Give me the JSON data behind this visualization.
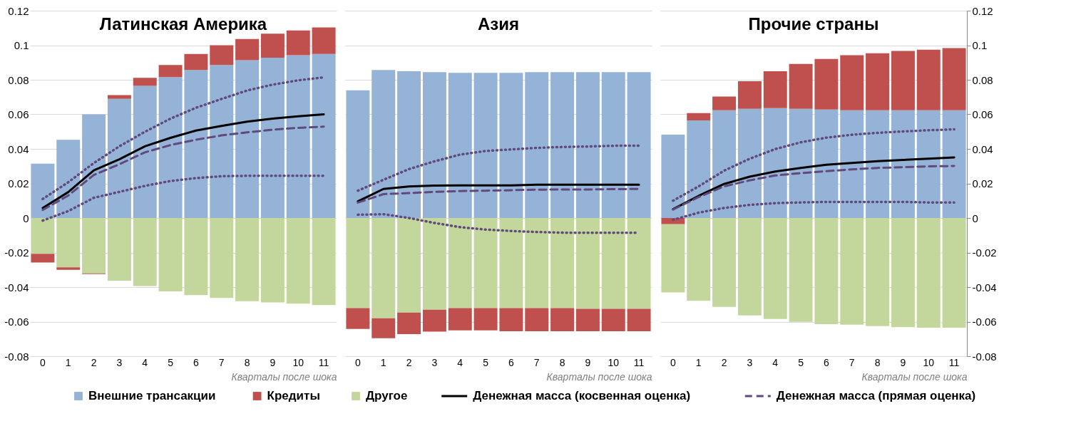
{
  "chart_data": [
    {
      "type": "bar",
      "title": "Латинская Америка",
      "xlabel": "Кварталы после шока",
      "categories": [
        "0",
        "1",
        "2",
        "3",
        "4",
        "5",
        "6",
        "7",
        "8",
        "9",
        "10",
        "11"
      ],
      "stacked": true,
      "ylim": [
        -0.08,
        0.12
      ],
      "yticks": [
        -0.08,
        -0.06,
        -0.04,
        -0.02,
        0,
        0.02,
        0.04,
        0.06,
        0.08,
        0.1,
        0.12
      ],
      "grid": "y",
      "legend": "bottom",
      "series": [
        {
          "name": "Внешние трансакции",
          "type": "bar",
          "color": "#95b3d7",
          "values": [
            0.0314,
            0.0453,
            0.06,
            0.069,
            0.0765,
            0.0815,
            0.0857,
            0.0886,
            0.0913,
            0.0928,
            0.0942,
            0.095
          ]
        },
        {
          "name": "Другое",
          "type": "bar",
          "color": "#c3d69b",
          "values": [
            -0.0207,
            -0.0286,
            -0.0321,
            -0.0363,
            -0.0394,
            -0.0425,
            -0.0446,
            -0.0463,
            -0.0481,
            -0.0489,
            -0.0496,
            -0.0504
          ]
        },
        {
          "name": "Кредиты",
          "type": "bar",
          "color": "#c0504d",
          "values": [
            -0.0051,
            -0.0014,
            -0.0004,
            0.0021,
            0.0046,
            0.0071,
            0.0093,
            0.0114,
            0.0123,
            0.0139,
            0.0144,
            0.0153
          ]
        },
        {
          "name": "Денежная масса (косвенная оценка)",
          "type": "line",
          "line_style": "solid",
          "color": "#000000",
          "values": [
            0.0058,
            0.015,
            0.0276,
            0.034,
            0.0415,
            0.0464,
            0.0506,
            0.0533,
            0.0558,
            0.0575,
            0.0589,
            0.06
          ]
        },
        {
          "name": "Денежная масса (прямая оценка)",
          "type": "line",
          "line_style": "dashed",
          "color": "#604a7b",
          "values": [
            0.0047,
            0.013,
            0.0249,
            0.0311,
            0.038,
            0.0422,
            0.0453,
            0.0478,
            0.0496,
            0.0511,
            0.0522,
            0.0529
          ]
        },
        {
          "type": "line",
          "line_style": "dotted",
          "color": "#604a7b",
          "values": [
            0.011,
            0.0207,
            0.0318,
            0.0415,
            0.0499,
            0.0575,
            0.0638,
            0.0689,
            0.0738,
            0.0772,
            0.0797,
            0.0814
          ]
        },
        {
          "type": "line",
          "line_style": "dotted",
          "color": "#604a7b",
          "values": [
            -0.0015,
            0.004,
            0.0117,
            0.0151,
            0.0186,
            0.0214,
            0.0231,
            0.0242,
            0.0244,
            0.0244,
            0.0244,
            0.0244
          ]
        }
      ]
    },
    {
      "type": "bar",
      "title": "Азия",
      "xlabel": "Кварталы после шока",
      "categories": [
        "0",
        "1",
        "2",
        "3",
        "4",
        "5",
        "6",
        "7",
        "8",
        "9",
        "10",
        "11"
      ],
      "stacked": true,
      "ylim": [
        -0.08,
        0.12
      ],
      "yticks": [
        -0.08,
        -0.06,
        -0.04,
        -0.02,
        0,
        0.02,
        0.04,
        0.06,
        0.08,
        0.1,
        0.12
      ],
      "grid": "y",
      "legend": "bottom",
      "tick_labels": "x",
      "series": [
        {
          "name": "Внешние трансакции",
          "type": "bar",
          "color": "#95b3d7",
          "values": [
            0.0739,
            0.0857,
            0.0849,
            0.0844,
            0.084,
            0.084,
            0.084,
            0.0844,
            0.0844,
            0.0844,
            0.0844,
            0.0844
          ]
        },
        {
          "name": "Другое",
          "type": "bar",
          "color": "#c3d69b",
          "values": [
            -0.0522,
            -0.058,
            -0.0547,
            -0.0531,
            -0.0522,
            -0.0522,
            -0.0522,
            -0.0522,
            -0.0522,
            -0.0526,
            -0.0526,
            -0.0526
          ]
        },
        {
          "name": "Кредиты",
          "type": "bar",
          "color": "#c0504d",
          "values": [
            -0.012,
            -0.0116,
            -0.0125,
            -0.0127,
            -0.0128,
            -0.0128,
            -0.0134,
            -0.0134,
            -0.0134,
            -0.013,
            -0.013,
            -0.013
          ]
        },
        {
          "name": "Денежная масса (косвенная оценка)",
          "type": "line",
          "line_style": "solid",
          "color": "#000000",
          "values": [
            0.0096,
            0.0168,
            0.0182,
            0.0188,
            0.0189,
            0.0189,
            0.0189,
            0.0193,
            0.0193,
            0.0193,
            0.0193,
            0.0193
          ]
        },
        {
          "name": "Денежная масса (прямая оценка)",
          "type": "line",
          "line_style": "dashed",
          "color": "#604a7b",
          "values": [
            0.0089,
            0.0138,
            0.0144,
            0.0151,
            0.0156,
            0.0158,
            0.0161,
            0.0164,
            0.0165,
            0.0165,
            0.0167,
            0.0168
          ]
        },
        {
          "type": "line",
          "line_style": "dotted",
          "color": "#604a7b",
          "values": [
            0.0158,
            0.0221,
            0.0283,
            0.0328,
            0.0367,
            0.0388,
            0.0397,
            0.0406,
            0.0411,
            0.0414,
            0.0418,
            0.0419
          ]
        },
        {
          "type": "line",
          "line_style": "dotted",
          "color": "#604a7b",
          "values": [
            0.0019,
            0.0022,
            0,
            -0.0029,
            -0.0053,
            -0.0067,
            -0.0075,
            -0.0081,
            -0.0085,
            -0.0086,
            -0.0086,
            -0.0086
          ]
        }
      ]
    },
    {
      "type": "bar",
      "title": "Прочие страны",
      "xlabel": "Кварталы после шока",
      "categories": [
        "0",
        "1",
        "2",
        "3",
        "4",
        "5",
        "6",
        "7",
        "8",
        "9",
        "10",
        "11"
      ],
      "stacked": true,
      "ylim": [
        -0.08,
        0.12
      ],
      "yticks": [
        -0.08,
        -0.06,
        -0.04,
        -0.02,
        0,
        0.02,
        0.04,
        0.06,
        0.08,
        0.1,
        0.12
      ],
      "grid": "y",
      "legend": "bottom",
      "series": [
        {
          "name": "Внешние трансакции",
          "type": "bar",
          "color": "#95b3d7",
          "values": [
            0.0482,
            0.0565,
            0.0624,
            0.0632,
            0.0636,
            0.0632,
            0.0628,
            0.0624,
            0.0624,
            0.0624,
            0.0624,
            0.0624
          ]
        },
        {
          "name": "Кредиты",
          "type": "bar",
          "color": "#c0504d",
          "values": [
            -0.0036,
            0.0042,
            0.0079,
            0.016,
            0.0213,
            0.026,
            0.0293,
            0.0318,
            0.033,
            0.0343,
            0.035,
            0.0359
          ]
        },
        {
          "name": "Другое",
          "type": "bar",
          "color": "#c3d69b",
          "values": [
            -0.0395,
            -0.0479,
            -0.0514,
            -0.0564,
            -0.0585,
            -0.0601,
            -0.0614,
            -0.0618,
            -0.0626,
            -0.0632,
            -0.0635,
            -0.0635
          ]
        },
        {
          "name": "Денежная масса (косвенная оценка)",
          "type": "line",
          "line_style": "solid",
          "color": "#000000",
          "values": [
            0.0051,
            0.0128,
            0.0197,
            0.0239,
            0.0269,
            0.029,
            0.0308,
            0.0319,
            0.0329,
            0.0336,
            0.0343,
            0.0351
          ]
        },
        {
          "name": "Денежная масса (прямая оценка)",
          "type": "line",
          "line_style": "dashed",
          "color": "#604a7b",
          "values": [
            0.0049,
            0.0121,
            0.0183,
            0.0218,
            0.0246,
            0.026,
            0.0271,
            0.0281,
            0.029,
            0.0294,
            0.0299,
            0.0301
          ]
        },
        {
          "type": "line",
          "line_style": "dotted",
          "color": "#604a7b",
          "values": [
            0.01,
            0.0183,
            0.0274,
            0.0343,
            0.0399,
            0.0438,
            0.0465,
            0.0482,
            0.0493,
            0.0501,
            0.0508,
            0.0513
          ]
        },
        {
          "type": "line",
          "line_style": "dotted",
          "color": "#604a7b",
          "values": [
            -0.0011,
            0.0031,
            0.0058,
            0.0076,
            0.0086,
            0.009,
            0.0093,
            0.0093,
            0.0093,
            0.0093,
            0.009,
            0.009
          ]
        }
      ]
    }
  ]
}
